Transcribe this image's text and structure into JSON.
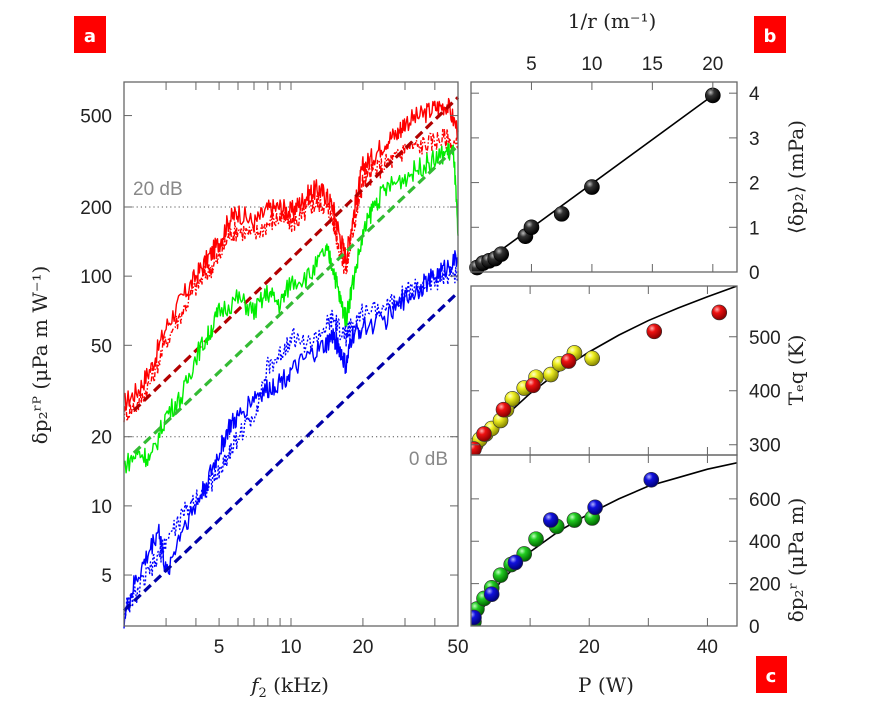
{
  "chart_data": [
    {
      "panel": "a",
      "type": "line",
      "xscale": "log",
      "yscale": "log",
      "xlabel": "f_2 (kHz)",
      "ylabel": "δp_2^{rP} (μPa m W^{-1})",
      "xlim": [
        2,
        50
      ],
      "ylim": [
        3,
        700
      ],
      "xticks": [
        5,
        10,
        20,
        50
      ],
      "yticks": [
        5,
        10,
        20,
        50,
        100,
        200,
        500
      ],
      "reference_lines": [
        {
          "y": 200,
          "label": "20 dB",
          "style": "dotted"
        },
        {
          "y": 20,
          "label": "0 dB",
          "style": "dotted"
        }
      ],
      "series": [
        {
          "name": "red-measured-1",
          "color": "#ff0000",
          "style": "solid",
          "x": [
            2.0,
            2.3,
            2.6,
            3.0,
            3.5,
            4.0,
            4.5,
            5.0,
            5.5,
            6.0,
            7.0,
            8.0,
            9.0,
            10,
            11,
            12,
            13,
            14,
            15,
            16,
            17,
            18,
            19,
            20,
            22,
            25,
            28,
            30,
            35,
            40,
            45,
            50
          ],
          "y": [
            28,
            32,
            40,
            60,
            80,
            100,
            120,
            140,
            175,
            190,
            170,
            195,
            200,
            190,
            210,
            230,
            240,
            225,
            200,
            150,
            120,
            170,
            230,
            300,
            330,
            390,
            420,
            470,
            500,
            540,
            560,
            430
          ]
        },
        {
          "name": "red-measured-2",
          "color": "#ff0000",
          "style": "dashdot",
          "x": [
            2.0,
            2.3,
            2.6,
            3.0,
            3.5,
            4.0,
            4.5,
            5.0,
            5.5,
            6.0,
            7.0,
            8.0,
            9.0,
            10,
            11,
            12,
            13,
            14,
            15,
            16,
            17,
            18,
            19,
            20,
            22,
            25,
            28,
            30,
            35,
            40,
            45,
            50
          ],
          "y": [
            25,
            28,
            35,
            52,
            70,
            90,
            105,
            120,
            150,
            160,
            150,
            170,
            180,
            170,
            180,
            200,
            210,
            200,
            175,
            130,
            105,
            150,
            200,
            260,
            280,
            310,
            330,
            360,
            370,
            390,
            400,
            360
          ]
        },
        {
          "name": "red-fit",
          "color": "#b30000",
          "style": "dashed",
          "x": [
            2.2,
            50
          ],
          "y": [
            26,
            600
          ]
        },
        {
          "name": "green-measured",
          "color": "#00ee00",
          "style": "solid",
          "x": [
            2.0,
            2.3,
            2.6,
            3.0,
            3.5,
            4.0,
            4.5,
            5.0,
            6.0,
            7.0,
            8.0,
            9.0,
            10,
            12,
            14,
            15,
            16,
            17,
            18,
            20,
            22,
            25,
            30,
            35,
            40,
            45,
            48,
            50
          ],
          "y": [
            15,
            17,
            16,
            25,
            30,
            45,
            55,
            70,
            80,
            70,
            85,
            75,
            95,
            100,
            130,
            110,
            80,
            65,
            90,
            150,
            200,
            240,
            270,
            300,
            320,
            350,
            340,
            150
          ]
        },
        {
          "name": "green-fit",
          "color": "#33bb33",
          "style": "dashed",
          "x": [
            2.2,
            50
          ],
          "y": [
            17,
            370
          ]
        },
        {
          "name": "blue-measured-1",
          "color": "#0000ff",
          "style": "solid",
          "x": [
            2.0,
            2.2,
            2.5,
            2.8,
            3.0,
            3.5,
            4.0,
            4.5,
            5.0,
            5.5,
            6.0,
            7.0,
            8.0,
            9.0,
            10,
            12,
            14,
            15,
            16,
            17,
            18,
            20,
            25,
            30,
            35,
            40,
            45,
            50
          ],
          "y": [
            3.2,
            4.5,
            6,
            8,
            5,
            8,
            10,
            13,
            17,
            22,
            24,
            30,
            32,
            35,
            38,
            45,
            50,
            55,
            48,
            40,
            55,
            60,
            65,
            80,
            90,
            100,
            110,
            120
          ]
        },
        {
          "name": "blue-measured-2",
          "color": "#0000ff",
          "style": "dotted",
          "x": [
            2.0,
            2.2,
            2.5,
            2.8,
            3.0,
            3.5,
            4.0,
            4.5,
            5.0,
            5.5,
            6.0,
            7.0,
            8.0,
            9.0,
            10,
            12,
            14,
            15,
            16,
            17,
            18,
            20,
            25,
            30,
            35,
            40,
            45,
            50
          ],
          "y": [
            3.5,
            4,
            5,
            6,
            7,
            9,
            11,
            12,
            14,
            17,
            20,
            25,
            40,
            45,
            55,
            50,
            60,
            65,
            58,
            55,
            60,
            70,
            75,
            85,
            90,
            95,
            100,
            105
          ]
        },
        {
          "name": "blue-fit",
          "color": "#0000aa",
          "style": "dashed",
          "x": [
            2.0,
            50
          ],
          "y": [
            3.5,
            85
          ]
        }
      ],
      "badge": "a"
    },
    {
      "panel": "b",
      "type": "scatter",
      "xlabel": "1/r (m^{-1})",
      "ylabel": "⟨δp_2⟩ (mPa)",
      "xlim": [
        0,
        22
      ],
      "ylim": [
        0,
        4.25
      ],
      "xticks": [
        5,
        10,
        15,
        20
      ],
      "yticks": [
        0,
        1,
        2,
        3,
        4
      ],
      "x_axis_position": "top",
      "y_axis_position": "right",
      "points": {
        "color": "#111111",
        "x": [
          0.5,
          1.0,
          1.5,
          2.0,
          2.5,
          4.5,
          5.0,
          7.5,
          10.0,
          20.0
        ],
        "y": [
          0.1,
          0.2,
          0.25,
          0.3,
          0.4,
          0.8,
          1.0,
          1.3,
          1.9,
          3.95
        ]
      },
      "fit": {
        "x": [
          0,
          20
        ],
        "y": [
          0,
          3.95
        ]
      },
      "badge": "b"
    },
    {
      "panel": "c-top",
      "type": "scatter",
      "ylabel": "T_eq (K)",
      "xlim": [
        0,
        45
      ],
      "ylim": [
        281,
        594
      ],
      "yticks": [
        300,
        400,
        500
      ],
      "y_axis_position": "right",
      "series": [
        {
          "name": "yellow",
          "color": "#eeee00",
          "x": [
            0.8,
            1.5,
            2.5,
            3.5,
            5.0,
            6.0,
            7.0,
            9.0,
            11.0,
            13.5,
            15.0,
            17.5,
            20.5
          ],
          "y": [
            300,
            310,
            320,
            330,
            345,
            365,
            385,
            405,
            425,
            430,
            450,
            470,
            460
          ]
        },
        {
          "name": "red",
          "color": "#ee0000",
          "x": [
            0.5,
            2.2,
            5.5,
            10.5,
            16.5,
            31.0,
            42.0
          ],
          "y": [
            292,
            320,
            365,
            410,
            455,
            510,
            545
          ]
        }
      ],
      "fit": {
        "x": [
          0,
          5,
          10,
          15,
          20,
          25,
          30,
          35,
          40,
          45
        ],
        "y": [
          288,
          345,
          395,
          437,
          472,
          503,
          530,
          553,
          574,
          594
        ]
      },
      "badge": "c"
    },
    {
      "panel": "c-bottom",
      "type": "scatter",
      "xlabel": "P (W)",
      "ylabel": "δp_2^r (μPa m)",
      "xlim": [
        0,
        45
      ],
      "ylim": [
        0,
        807
      ],
      "xticks": [
        20,
        40
      ],
      "yticks": [
        0,
        200,
        400,
        600
      ],
      "y_axis_position": "right",
      "series": [
        {
          "name": "green",
          "color": "#22cc22",
          "x": [
            0.5,
            1.0,
            2.2,
            3.5,
            5.0,
            6.8,
            9.0,
            11.0,
            14.5,
            17.5,
            20.5
          ],
          "y": [
            20,
            80,
            130,
            180,
            240,
            290,
            340,
            410,
            470,
            500,
            510
          ]
        },
        {
          "name": "blue",
          "color": "#1111dd",
          "x": [
            0.5,
            3.5,
            7.5,
            13.5,
            21.0,
            30.5
          ],
          "y": [
            40,
            150,
            300,
            500,
            560,
            690
          ]
        }
      ],
      "fit": {
        "x": [
          0,
          5,
          10,
          15,
          20,
          25,
          30,
          35,
          40,
          45
        ],
        "y": [
          0,
          210,
          350,
          450,
          530,
          600,
          660,
          700,
          740,
          770
        ]
      }
    }
  ],
  "labels": {
    "panel_a_xlabel_main": "f",
    "panel_a_xlabel_sub": "2",
    "panel_a_xlabel_unit": " (kHz)",
    "panel_a_ylabel": "δp₂ʳᴾ (μPa m W⁻¹)",
    "panel_b_top_label": "1/r (m⁻¹)",
    "panel_b_right_label": "⟨δp₂⟩ (mPa)",
    "panel_c_mid_right_label": "Tₑq (K)",
    "panel_c_bot_right_label": "δp₂ʳ (μPa m)",
    "panel_c_xlabel": "P (W)",
    "db20": "20 dB",
    "db0": "0 dB",
    "badge_a": "a",
    "badge_b": "b",
    "badge_c": "c"
  },
  "colors": {
    "badge": "#ff0000",
    "frame": "#666666",
    "ref_line": "#555555"
  }
}
